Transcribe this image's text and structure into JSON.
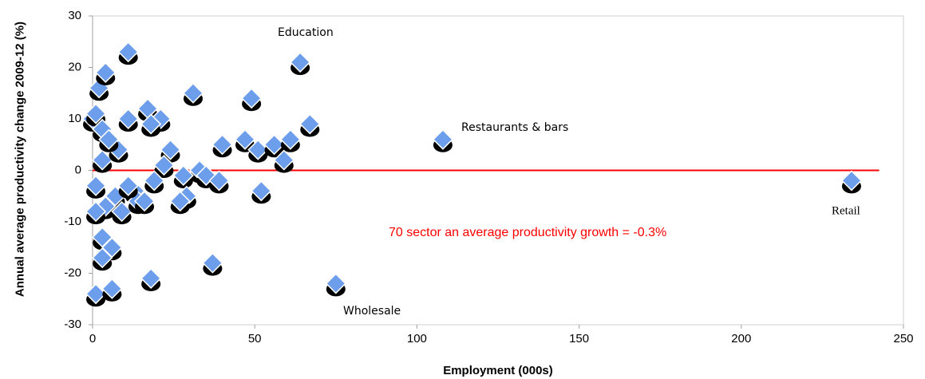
{
  "chart_data": {
    "type": "scatter",
    "xlabel": "Employment (000s)",
    "ylabel": "Annual average productivity change 2009-12 (%)",
    "xlim": [
      0,
      250
    ],
    "xticks": [
      0,
      50,
      100,
      150,
      200,
      250
    ],
    "ylim": [
      -30,
      30
    ],
    "yticks": [
      -30,
      -20,
      -10,
      0,
      10,
      20,
      30
    ],
    "color": "#6d9eeb",
    "x": [
      11,
      64,
      2,
      4,
      31,
      49,
      17,
      21,
      11,
      0,
      1,
      3,
      18,
      67,
      108,
      40,
      47,
      51,
      56,
      61,
      24,
      59,
      22,
      3,
      33,
      28,
      35,
      19,
      39,
      234,
      1,
      52,
      7,
      13,
      29,
      27,
      4,
      9,
      1,
      3,
      6,
      3,
      37,
      18,
      75,
      1,
      6,
      8,
      5,
      14,
      16,
      11
    ],
    "y": [
      23,
      21,
      16,
      19,
      15,
      14,
      12,
      10,
      10,
      10,
      11,
      8,
      9,
      9,
      6,
      5,
      6,
      4,
      5,
      6,
      4,
      2,
      1,
      2,
      0,
      -1,
      -1,
      -2,
      -2,
      -2,
      -3,
      -4,
      -5,
      -4,
      -5,
      -6,
      -7,
      -8,
      -8,
      -13,
      -15,
      -17,
      -18,
      -21,
      -22,
      -24,
      -23,
      4,
      6,
      -6,
      -6,
      -3
    ],
    "reference_line": {
      "value": 0,
      "color": "#ff0000"
    },
    "annotations": [
      "Education",
      "Restaurants & bars",
      "Retail",
      "Wholesale",
      "70 sector an average productivity growth = -0.3%"
    ]
  }
}
